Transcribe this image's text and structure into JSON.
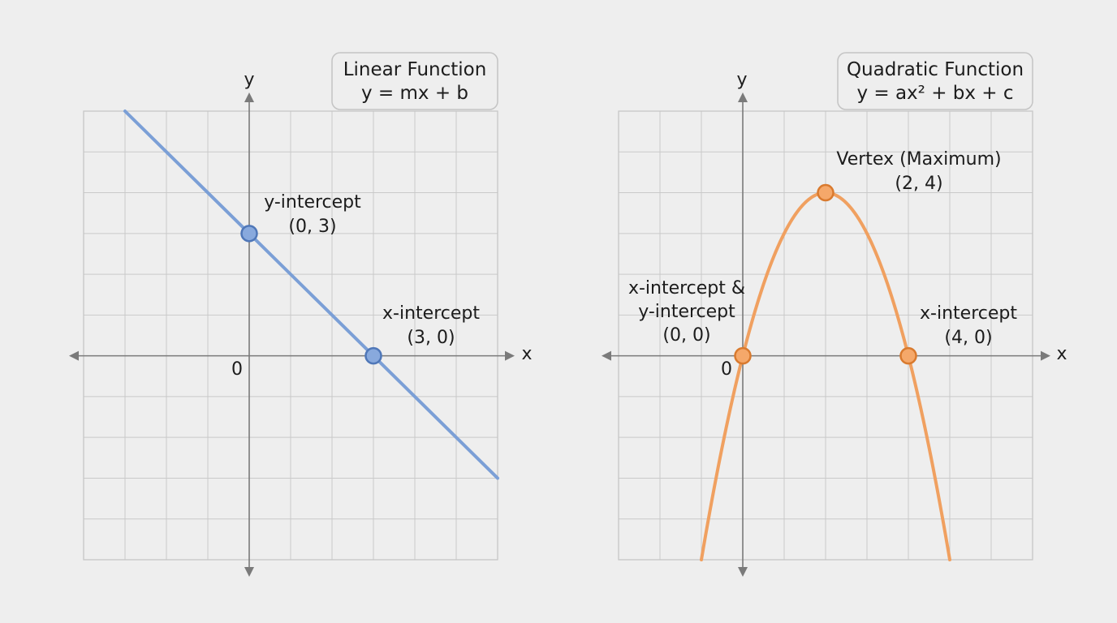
{
  "colors": {
    "background": "#eeeeee",
    "grid": "#c9c9c9",
    "axis": "#7a7a7a",
    "linear_line": "#7b9fd6",
    "linear_point_fill": "#88a9dd",
    "linear_point_stroke": "#4f77b8",
    "quadratic_curve": "#f0a060",
    "quadratic_point_fill": "#f5a86a",
    "quadratic_point_stroke": "#d97a2e"
  },
  "chart_data": [
    {
      "type": "line",
      "title": "Linear Function",
      "subtitle": "y = mx + b",
      "xlabel": "x",
      "ylabel": "y",
      "origin_label": "0",
      "xlim": [
        -4,
        6
      ],
      "ylim": [
        -5,
        6
      ],
      "grid": true,
      "series": [
        {
          "values": [
            {
              "x": -3,
              "y": 6
            },
            {
              "x": 6,
              "y": -3
            }
          ]
        }
      ],
      "points": [
        {
          "x": 0,
          "y": 3,
          "label": "y-intercept",
          "coord": "(0, 3)"
        },
        {
          "x": 3,
          "y": 0,
          "label": "x-intercept",
          "coord": "(3, 0)"
        }
      ]
    },
    {
      "type": "line",
      "title": "Quadratic Function",
      "subtitle": "y = ax² + bx + c",
      "xlabel": "x",
      "ylabel": "y",
      "origin_label": "0",
      "xlim": [
        -3,
        7
      ],
      "ylim": [
        -5,
        6
      ],
      "grid": true,
      "series": [
        {
          "equation": "y = -x² + 4x",
          "x_range": [
            -1,
            5
          ]
        }
      ],
      "points": [
        {
          "x": 2,
          "y": 4,
          "label": "Vertex (Maximum)",
          "coord": "(2, 4)"
        },
        {
          "x": 0,
          "y": 0,
          "label": "x-intercept &",
          "label2": "y-intercept",
          "coord": "(0, 0)"
        },
        {
          "x": 4,
          "y": 0,
          "label": "x-intercept",
          "coord": "(4, 0)"
        }
      ]
    }
  ]
}
